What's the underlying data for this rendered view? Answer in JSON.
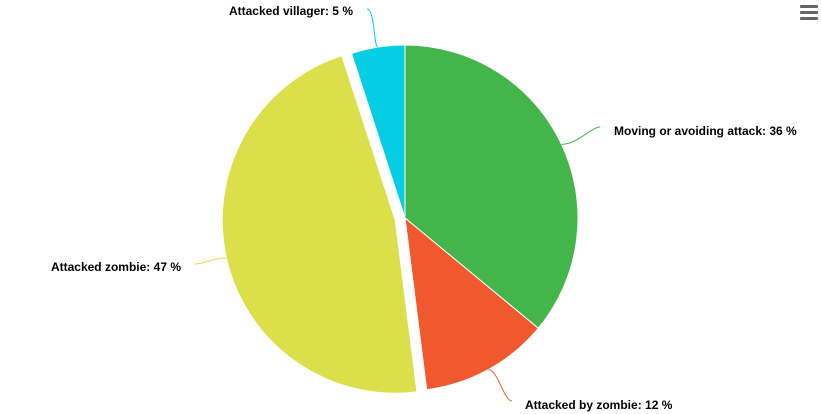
{
  "chart_data": {
    "type": "pie",
    "title": "",
    "slices": [
      {
        "name": "Moving or avoiding attack",
        "value": 36,
        "label": "Moving or avoiding attack: 36 %",
        "color": "#44b54b",
        "sliced": false
      },
      {
        "name": "Attacked by zombie",
        "value": 12,
        "label": "Attacked by zombie: 12 %",
        "color": "#f2582e",
        "sliced": false
      },
      {
        "name": "Attacked zombie",
        "value": 47,
        "label": "Attacked zombie: 47 %",
        "color": "#dbdf49",
        "sliced": true
      },
      {
        "name": "Attacked villager",
        "value": 5,
        "label": "Attacked villager: 5 %",
        "color": "#04cde4",
        "sliced": false
      }
    ],
    "data_labels": true,
    "legend": "none"
  },
  "menu": {
    "icon": "hamburger-menu-icon"
  }
}
